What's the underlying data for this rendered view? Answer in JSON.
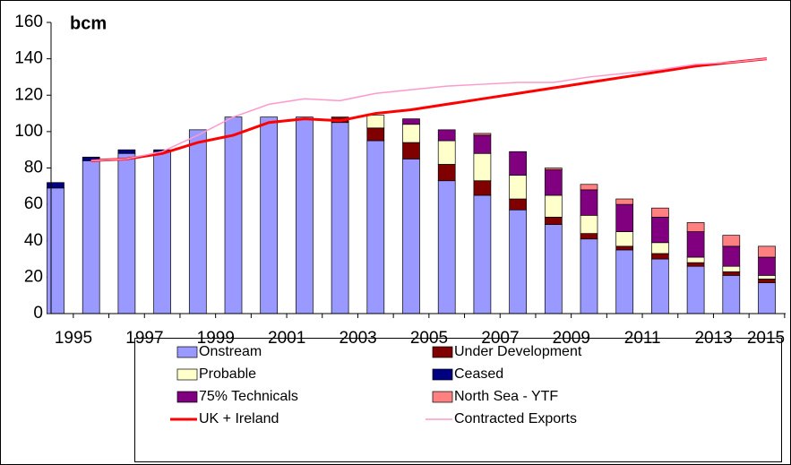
{
  "chart_data": {
    "type": "bar",
    "stacked": true,
    "annotation": "bcm",
    "categories": [
      "1995",
      null,
      "1997",
      null,
      "1999",
      null,
      "2001",
      null,
      "2003",
      null,
      "2005",
      null,
      "2007",
      null,
      "2009",
      null,
      "2011",
      null,
      "2013",
      null,
      "2015"
    ],
    "ylim": [
      0,
      160
    ],
    "yticks": [
      0,
      20,
      40,
      60,
      80,
      100,
      120,
      140,
      160
    ],
    "series": [
      {
        "name": "Onstream",
        "type": "bar",
        "color": "#9999ff",
        "values": [
          69,
          84,
          88,
          89,
          101,
          108,
          108,
          108,
          105,
          95,
          85,
          73,
          65,
          57,
          49,
          41,
          35,
          30,
          26,
          21,
          17
        ]
      },
      {
        "name": "Under Development",
        "type": "bar",
        "color": "#800000",
        "values": [
          0,
          0,
          0,
          0,
          0,
          0,
          0,
          0,
          3,
          7,
          9,
          9,
          8,
          6,
          4,
          3,
          2,
          3,
          2,
          2,
          2
        ]
      },
      {
        "name": "Probable",
        "type": "bar",
        "color": "#ffffcc",
        "values": [
          0,
          0,
          0,
          0,
          0,
          0,
          0,
          0,
          0,
          7,
          10,
          13,
          15,
          13,
          12,
          10,
          8,
          6,
          3,
          3,
          2
        ]
      },
      {
        "name": "Ceased",
        "type": "bar",
        "color": "#000080",
        "values": [
          3,
          2,
          2,
          1,
          0,
          0,
          0,
          0,
          0,
          0,
          0,
          0,
          0,
          0,
          0,
          0,
          0,
          0,
          0,
          0,
          0
        ]
      },
      {
        "name": "75% Technicals",
        "type": "bar",
        "color": "#800080",
        "values": [
          0,
          0,
          0,
          0,
          0,
          0,
          0,
          0,
          0,
          0,
          3,
          6,
          10,
          13,
          14,
          14,
          15,
          14,
          14,
          11,
          10
        ]
      },
      {
        "name": "North Sea - YTF",
        "type": "bar",
        "color": "#ff8080",
        "values": [
          0,
          0,
          0,
          0,
          0,
          0,
          0,
          0,
          0,
          0,
          0,
          0,
          1,
          0,
          1,
          3,
          3,
          5,
          5,
          6,
          6
        ]
      },
      {
        "name": "UK + Ireland",
        "type": "line",
        "color": "#ff0000",
        "values": [
          null,
          84,
          85,
          88,
          94,
          98,
          105,
          107,
          106,
          110,
          112,
          115,
          118,
          121,
          124,
          127,
          130,
          133,
          136,
          138,
          140
        ]
      },
      {
        "name": "Contracted Exports",
        "type": "line",
        "color": "#ff99cc",
        "values": [
          null,
          84,
          85,
          89,
          98,
          108,
          115,
          118,
          117,
          121,
          123,
          125,
          126,
          127,
          127,
          130,
          132,
          134,
          137,
          138,
          140
        ]
      }
    ]
  }
}
